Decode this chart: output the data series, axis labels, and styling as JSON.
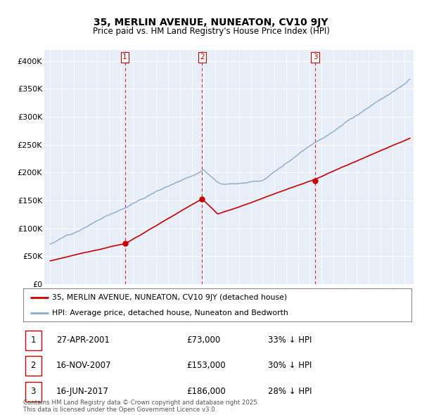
{
  "title_line1": "35, MERLIN AVENUE, NUNEATON, CV10 9JY",
  "title_line2": "Price paid vs. HM Land Registry's House Price Index (HPI)",
  "ylim": [
    0,
    420000
  ],
  "yticks": [
    0,
    50000,
    100000,
    150000,
    200000,
    250000,
    300000,
    350000,
    400000
  ],
  "ytick_labels": [
    "£0",
    "£50K",
    "£100K",
    "£150K",
    "£200K",
    "£250K",
    "£300K",
    "£350K",
    "£400K"
  ],
  "legend_line1": "35, MERLIN AVENUE, NUNEATON, CV10 9JY (detached house)",
  "legend_line2": "HPI: Average price, detached house, Nuneaton and Bedworth",
  "sale_color": "#cc0000",
  "hpi_color": "#88aacc",
  "vline_color": "#cc0000",
  "footer": "Contains HM Land Registry data © Crown copyright and database right 2025.\nThis data is licensed under the Open Government Licence v3.0.",
  "sale_dates": [
    "27-APR-2001",
    "16-NOV-2007",
    "16-JUN-2017"
  ],
  "sale_prices": [
    73000,
    153000,
    186000
  ],
  "sale_pct": [
    "33%",
    "30%",
    "28%"
  ],
  "sale_labels": [
    "1",
    "2",
    "3"
  ],
  "background_color": "#e8eef8",
  "sale_year_nums": [
    2001.33,
    2007.88,
    2017.46
  ],
  "xmin": 1994.5,
  "xmax": 2025.8
}
